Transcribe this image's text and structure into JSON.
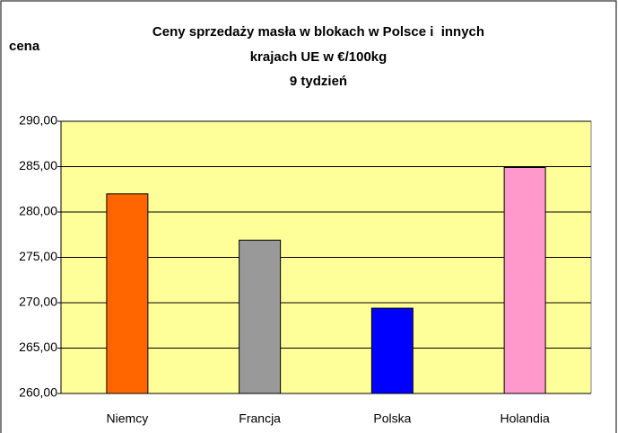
{
  "chart_data": {
    "type": "bar",
    "title": [
      "Ceny sprzedaży masła w blokach w Polsce i  innych",
      "krajach UE w €/100kg",
      "9 tydzień"
    ],
    "y_label": "cena",
    "categories": [
      "Niemcy",
      "Francja",
      "Polska",
      "Holandia"
    ],
    "values": [
      282.0,
      276.9,
      269.4,
      284.9
    ],
    "colors": [
      "#ff6600",
      "#999999",
      "#0000ff",
      "#ff99cc"
    ],
    "plot_background": "#ffff99",
    "ylim": [
      260,
      290
    ],
    "yticks": [
      {
        "value": 260,
        "label": "260,00"
      },
      {
        "value": 265,
        "label": "265,00"
      },
      {
        "value": 270,
        "label": "270,00"
      },
      {
        "value": 275,
        "label": "275,00"
      },
      {
        "value": 280,
        "label": "280,00"
      },
      {
        "value": 285,
        "label": "285,00"
      },
      {
        "value": 290,
        "label": "290,00"
      }
    ],
    "grid": true
  }
}
